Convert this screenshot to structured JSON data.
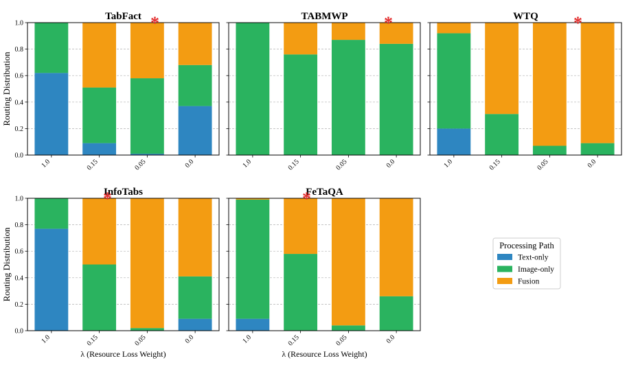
{
  "legend": {
    "title": "Processing Path",
    "placement": "center-right",
    "items": [
      {
        "label": "Text-only",
        "color": "#2e86c1"
      },
      {
        "label": "Image-only",
        "color": "#2ab35f"
      },
      {
        "label": "Fusion",
        "color": "#f39c12"
      }
    ]
  },
  "marker_color": "#e32b2b",
  "chart_data": [
    {
      "type": "bar",
      "stacked": true,
      "title": "TabFact",
      "star": "*",
      "categories": [
        "1.0",
        "0.15",
        "0.05",
        "0.0"
      ],
      "xlabel": "",
      "ylabel": "Routing Distribution",
      "ylim": [
        0,
        1
      ],
      "yticks": [
        "0.0",
        "0.2",
        "0.4",
        "0.6",
        "0.8",
        "1.0"
      ],
      "grid": true,
      "series": [
        {
          "name": "Text-only",
          "values": [
            0.62,
            0.09,
            0.01,
            0.37
          ]
        },
        {
          "name": "Image-only",
          "values": [
            0.38,
            0.42,
            0.57,
            0.31
          ]
        },
        {
          "name": "Fusion",
          "values": [
            0.0,
            0.49,
            0.42,
            0.32
          ]
        }
      ]
    },
    {
      "type": "bar",
      "stacked": true,
      "title": "TABMWP",
      "star": "*",
      "categories": [
        "1.0",
        "0.15",
        "0.05",
        "0.0"
      ],
      "xlabel": "",
      "ylabel": "",
      "ylim": [
        0,
        1
      ],
      "yticks": [
        "0.0",
        "0.2",
        "0.4",
        "0.6",
        "0.8",
        "1.0"
      ],
      "grid": true,
      "series": [
        {
          "name": "Text-only",
          "values": [
            0.0,
            0.0,
            0.0,
            0.0
          ]
        },
        {
          "name": "Image-only",
          "values": [
            1.0,
            0.76,
            0.87,
            0.84
          ]
        },
        {
          "name": "Fusion",
          "values": [
            0.0,
            0.24,
            0.13,
            0.16
          ]
        }
      ]
    },
    {
      "type": "bar",
      "stacked": true,
      "title": "WTQ",
      "star": "*",
      "categories": [
        "1.0",
        "0.15",
        "0.05",
        "0.0"
      ],
      "xlabel": "",
      "ylabel": "",
      "ylim": [
        0,
        1
      ],
      "yticks": [
        "0.0",
        "0.2",
        "0.4",
        "0.6",
        "0.8",
        "1.0"
      ],
      "grid": true,
      "series": [
        {
          "name": "Text-only",
          "values": [
            0.2,
            0.0,
            0.0,
            0.0
          ]
        },
        {
          "name": "Image-only",
          "values": [
            0.72,
            0.31,
            0.07,
            0.09
          ]
        },
        {
          "name": "Fusion",
          "values": [
            0.08,
            0.69,
            0.93,
            0.91
          ]
        }
      ]
    },
    {
      "type": "bar",
      "stacked": true,
      "title": "InfoTabs",
      "star": "*",
      "categories": [
        "1.0",
        "0.15",
        "0.05",
        "0.0"
      ],
      "xlabel": "λ (Resource Loss Weight)",
      "ylabel": "Routing Distribution",
      "ylim": [
        0,
        1
      ],
      "yticks": [
        "0.0",
        "0.2",
        "0.4",
        "0.6",
        "0.8",
        "1.0"
      ],
      "grid": true,
      "series": [
        {
          "name": "Text-only",
          "values": [
            0.77,
            0.0,
            0.0,
            0.09
          ]
        },
        {
          "name": "Image-only",
          "values": [
            0.23,
            0.5,
            0.02,
            0.32
          ]
        },
        {
          "name": "Fusion",
          "values": [
            0.0,
            0.5,
            0.98,
            0.59
          ]
        }
      ]
    },
    {
      "type": "bar",
      "stacked": true,
      "title": "FeTaQA",
      "star": "*",
      "categories": [
        "1.0",
        "0.15",
        "0.05",
        "0.0"
      ],
      "xlabel": "λ (Resource Loss Weight)",
      "ylabel": "",
      "ylim": [
        0,
        1
      ],
      "yticks": [
        "0.0",
        "0.2",
        "0.4",
        "0.6",
        "0.8",
        "1.0"
      ],
      "grid": true,
      "series": [
        {
          "name": "Text-only",
          "values": [
            0.09,
            0.0,
            0.0,
            0.0
          ]
        },
        {
          "name": "Image-only",
          "values": [
            0.9,
            0.58,
            0.04,
            0.26
          ]
        },
        {
          "name": "Fusion",
          "values": [
            0.01,
            0.42,
            0.96,
            0.74
          ]
        }
      ]
    }
  ]
}
